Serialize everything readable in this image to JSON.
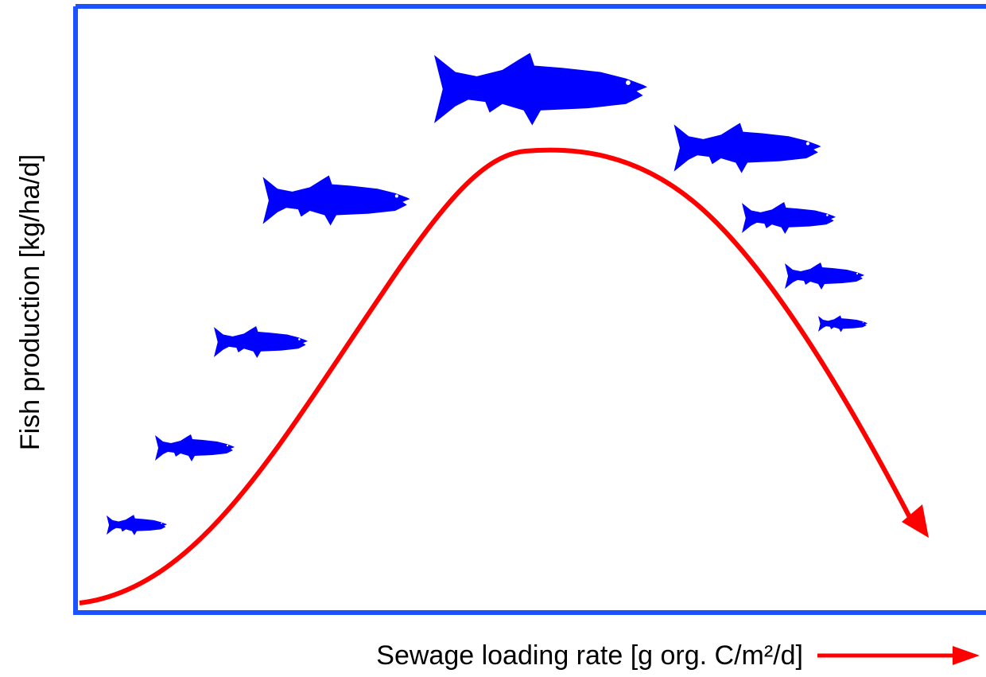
{
  "x_label": "Sewage loading rate [g org. C/m²/d]",
  "y_label": "Fish production [kg/ha/d]"
}
